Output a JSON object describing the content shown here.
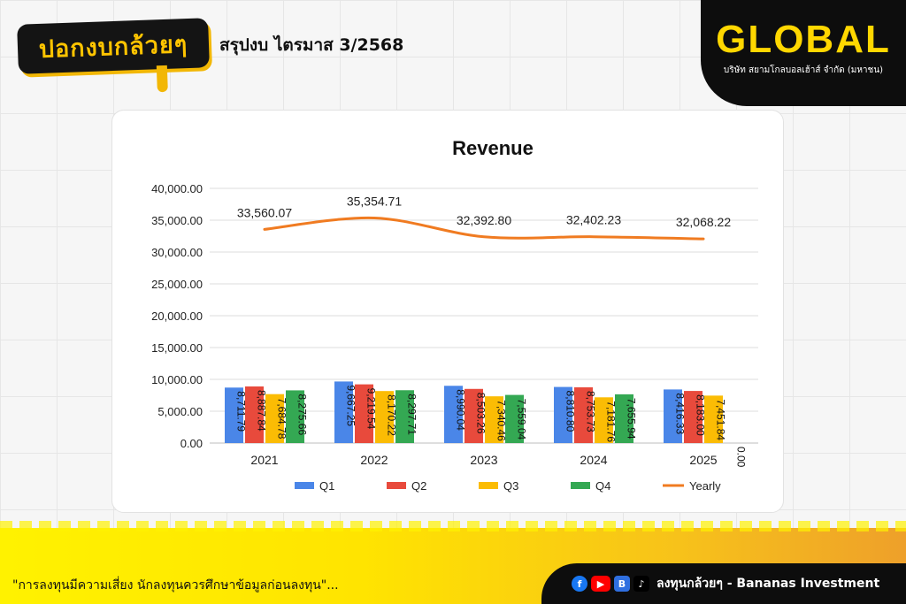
{
  "header": {
    "logo_text": "ปอกงบกล้วยๆ",
    "title": "สรุปงบ ไตรมาส 3/2568"
  },
  "brand": {
    "name": "GLOBAL",
    "subtitle": "บริษัท สยามโกลบอลเฮ้าส์ จำกัด (มหาชน)"
  },
  "footer": {
    "disclaimer": "\"การลงทุนมีความเสี่ยง นักลงทุนควรศึกษาข้อมูลก่อนลงทุน\"...",
    "channel": "ลงทุนกล้วยๆ - Bananas Investment",
    "icons": [
      "facebook-icon",
      "youtube-icon",
      "blockdit-icon",
      "tiktok-icon"
    ]
  },
  "chart_data": {
    "type": "bar",
    "title": "Revenue",
    "categories": [
      "2021",
      "2022",
      "2023",
      "2024",
      "2025"
    ],
    "series": [
      {
        "name": "Q1",
        "color": "#4a86e8",
        "values": [
          8711.79,
          9667.25,
          8990.04,
          8810.8,
          8416.33
        ],
        "labels": [
          "8,711.79",
          "9,667.25",
          "8,990.04",
          "8,810.80",
          "8,416.33"
        ]
      },
      {
        "name": "Q2",
        "color": "#e84a3c",
        "values": [
          8887.84,
          9219.54,
          8503.26,
          8753.73,
          8183.0
        ],
        "labels": [
          "8,887.84",
          "9,219.54",
          "8,503.26",
          "8,753.73",
          "8,183.00"
        ]
      },
      {
        "name": "Q3",
        "color": "#fbbc04",
        "values": [
          7684.78,
          8170.22,
          7340.46,
          7181.76,
          7451.84
        ],
        "labels": [
          "7,684.78",
          "8,170.22",
          "7,340.46",
          "7,181.76",
          "7,451.84"
        ]
      },
      {
        "name": "Q4",
        "color": "#34a853",
        "values": [
          8275.66,
          8297.71,
          7559.04,
          7655.94,
          0.0
        ],
        "labels": [
          "8,275.66",
          "8,297.71",
          "7,559.04",
          "7,655.94",
          "0.00"
        ]
      }
    ],
    "line": {
      "name": "Yearly",
      "color": "#f07b21",
      "values": [
        33560.07,
        35354.71,
        32392.8,
        32402.23,
        32068.22
      ],
      "labels": [
        "33,560.07",
        "35,354.71",
        "32,392.80",
        "32,402.23",
        "32,068.22"
      ]
    },
    "yticks": [
      "0.00",
      "5,000.00",
      "10,000.00",
      "15,000.00",
      "20,000.00",
      "25,000.00",
      "30,000.00",
      "35,000.00",
      "40,000.00"
    ],
    "ylim": [
      0,
      40000
    ],
    "grid": true,
    "legend": "bottom"
  }
}
